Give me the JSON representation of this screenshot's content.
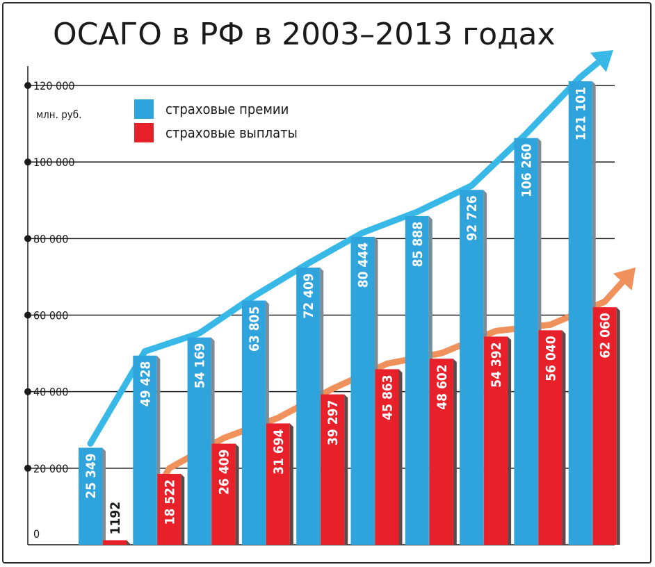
{
  "title": "ОСАГО в РФ в 2003–2013 годах",
  "chart_data": {
    "type": "bar",
    "title": "ОСАГО в РФ в 2003–2013 годах",
    "ylabel": "млн. руб.",
    "xlabel": "",
    "ylim": [
      0,
      120000
    ],
    "yticks": [
      0,
      20000,
      40000,
      60000,
      80000,
      100000,
      120000
    ],
    "ytick_labels": [
      "0",
      "20 000",
      "40 000",
      "60 000",
      "80 000",
      "100 000",
      "120 000"
    ],
    "legend": {
      "placement": "top-left"
    },
    "series": [
      {
        "name": "страховые премии",
        "color": "#2fa4dc",
        "values": [
          25349,
          49428,
          54169,
          63805,
          72409,
          80444,
          85888,
          92726,
          106260,
          121101
        ],
        "labels": [
          "25 349",
          "49 428",
          "54 169",
          "63 805",
          "72 409",
          "80 444",
          "85 888",
          "92 726",
          "106 260",
          "121 101"
        ]
      },
      {
        "name": "страховые выплаты",
        "color": "#e8202a",
        "values": [
          1192,
          18522,
          26409,
          31694,
          39297,
          45863,
          48602,
          54392,
          56040,
          62060
        ],
        "labels": [
          "1192",
          "18 522",
          "26 409",
          "31 694",
          "39 297",
          "45 863",
          "48 602",
          "54 392",
          "56 040",
          "62 060"
        ]
      }
    ],
    "trend_colors": {
      "premiums": "#38b8e6",
      "payments": "#f0905a"
    }
  }
}
